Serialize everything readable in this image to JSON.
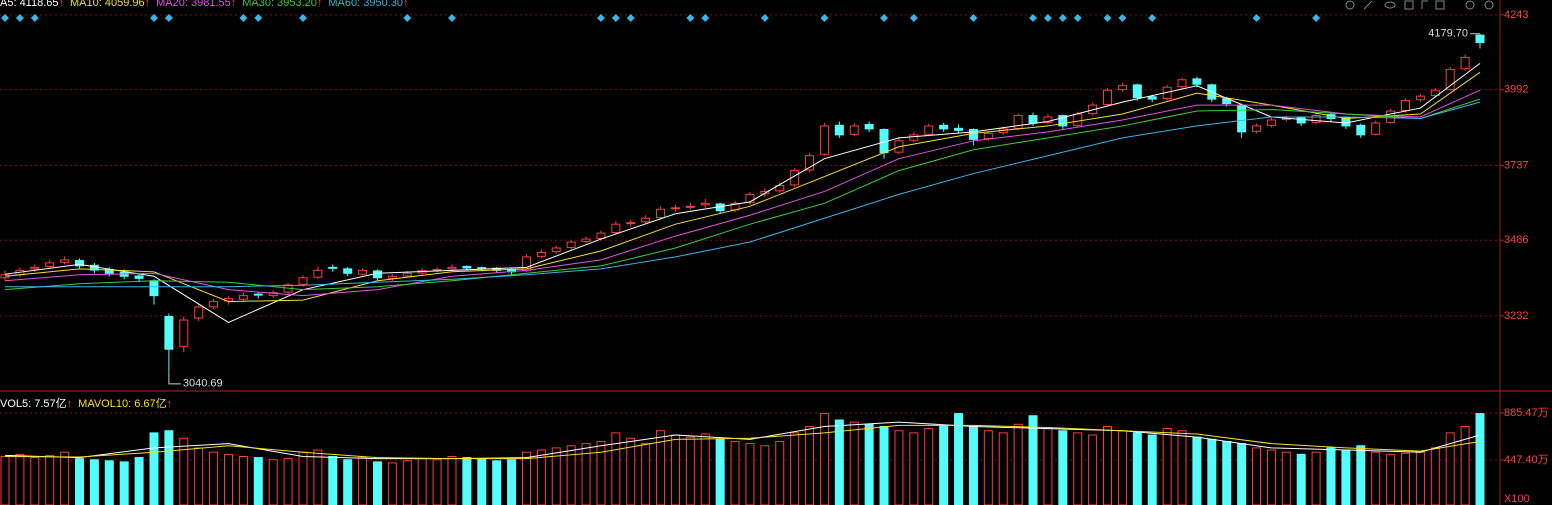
{
  "chart_data": [
    {
      "type": "candlestick",
      "up_color": "#ff3c3c",
      "down_color": "#54fcfc",
      "ylim": [
        2983,
        4293
      ],
      "yticks": [
        3232,
        3486,
        3737,
        3992,
        4243
      ],
      "grid": true,
      "candles": [
        [
          3360,
          3385,
          3350,
          3370
        ],
        [
          3370,
          3395,
          3362,
          3385
        ],
        [
          3390,
          3405,
          3380,
          3395
        ],
        [
          3398,
          3420,
          3390,
          3410
        ],
        [
          3412,
          3432,
          3405,
          3420
        ],
        [
          3418,
          3425,
          3392,
          3400
        ],
        [
          3402,
          3410,
          3375,
          3386
        ],
        [
          3388,
          3395,
          3365,
          3375
        ],
        [
          3378,
          3388,
          3355,
          3365
        ],
        [
          3366,
          3372,
          3345,
          3358
        ],
        [
          3350,
          3355,
          3270,
          3300
        ],
        [
          3230,
          3240,
          3040.69,
          3120
        ],
        [
          3130,
          3230,
          3110,
          3218
        ],
        [
          3225,
          3270,
          3215,
          3262
        ],
        [
          3262,
          3290,
          3255,
          3280
        ],
        [
          3282,
          3298,
          3270,
          3290
        ],
        [
          3288,
          3310,
          3280,
          3300
        ],
        [
          3305,
          3312,
          3290,
          3302
        ],
        [
          3300,
          3318,
          3292,
          3310
        ],
        [
          3312,
          3342,
          3305,
          3336
        ],
        [
          3338,
          3368,
          3330,
          3360
        ],
        [
          3362,
          3398,
          3355,
          3385
        ],
        [
          3395,
          3405,
          3380,
          3393
        ],
        [
          3390,
          3396,
          3365,
          3375
        ],
        [
          3372,
          3392,
          3368,
          3385
        ],
        [
          3383,
          3388,
          3352,
          3360
        ],
        [
          3358,
          3372,
          3350,
          3365
        ],
        [
          3366,
          3382,
          3360,
          3375
        ],
        [
          3376,
          3392,
          3370,
          3384
        ],
        [
          3385,
          3396,
          3378,
          3388
        ],
        [
          3390,
          3405,
          3384,
          3395
        ],
        [
          3398,
          3402,
          3385,
          3393
        ],
        [
          3394,
          3398,
          3382,
          3390
        ],
        [
          3392,
          3396,
          3378,
          3385
        ],
        [
          3388,
          3392,
          3368,
          3380
        ],
        [
          3385,
          3440,
          3380,
          3430
        ],
        [
          3432,
          3455,
          3425,
          3445
        ],
        [
          3448,
          3468,
          3440,
          3460
        ],
        [
          3462,
          3488,
          3455,
          3480
        ],
        [
          3482,
          3498,
          3475,
          3490
        ],
        [
          3492,
          3518,
          3485,
          3510
        ],
        [
          3512,
          3550,
          3505,
          3540
        ],
        [
          3545,
          3555,
          3532,
          3545
        ],
        [
          3548,
          3570,
          3540,
          3560
        ],
        [
          3562,
          3600,
          3555,
          3590
        ],
        [
          3592,
          3605,
          3582,
          3595
        ],
        [
          3598,
          3612,
          3588,
          3600
        ],
        [
          3605,
          3625,
          3595,
          3610
        ],
        [
          3608,
          3612,
          3575,
          3585
        ],
        [
          3588,
          3618,
          3580,
          3610
        ],
        [
          3612,
          3648,
          3605,
          3640
        ],
        [
          3642,
          3660,
          3632,
          3650
        ],
        [
          3652,
          3680,
          3645,
          3670
        ],
        [
          3672,
          3728,
          3665,
          3720
        ],
        [
          3722,
          3780,
          3715,
          3770
        ],
        [
          3775,
          3880,
          3770,
          3870
        ],
        [
          3872,
          3885,
          3830,
          3840
        ],
        [
          3842,
          3880,
          3835,
          3870
        ],
        [
          3875,
          3885,
          3850,
          3860
        ],
        [
          3858,
          3862,
          3760,
          3780
        ],
        [
          3782,
          3830,
          3775,
          3820
        ],
        [
          3822,
          3850,
          3815,
          3840
        ],
        [
          3842,
          3878,
          3835,
          3870
        ],
        [
          3872,
          3880,
          3850,
          3860
        ],
        [
          3862,
          3875,
          3845,
          3855
        ],
        [
          3858,
          3862,
          3805,
          3825
        ],
        [
          3828,
          3852,
          3820,
          3845
        ],
        [
          3848,
          3868,
          3840,
          3860
        ],
        [
          3862,
          3912,
          3855,
          3905
        ],
        [
          3905,
          3915,
          3870,
          3880
        ],
        [
          3882,
          3910,
          3875,
          3900
        ],
        [
          3905,
          3908,
          3860,
          3870
        ],
        [
          3872,
          3918,
          3865,
          3910
        ],
        [
          3912,
          3948,
          3905,
          3940
        ],
        [
          3942,
          3998,
          3935,
          3990
        ],
        [
          3992,
          4015,
          3985,
          4005
        ],
        [
          4008,
          4012,
          3955,
          3965
        ],
        [
          3968,
          3975,
          3950,
          3960
        ],
        [
          3962,
          4008,
          3955,
          4000
        ],
        [
          4002,
          4032,
          3995,
          4025
        ],
        [
          4028,
          4035,
          4000,
          4010
        ],
        [
          4008,
          4012,
          3950,
          3960
        ],
        [
          3962,
          3968,
          3935,
          3945
        ],
        [
          3940,
          3945,
          3830,
          3850
        ],
        [
          3852,
          3878,
          3845,
          3870
        ],
        [
          3872,
          3898,
          3865,
          3890
        ],
        [
          3892,
          3905,
          3885,
          3895
        ],
        [
          3898,
          3902,
          3870,
          3880
        ],
        [
          3882,
          3912,
          3875,
          3905
        ],
        [
          3908,
          3912,
          3885,
          3895
        ],
        [
          3898,
          3902,
          3860,
          3870
        ],
        [
          3872,
          3878,
          3830,
          3840
        ],
        [
          3842,
          3888,
          3838,
          3880
        ],
        [
          3882,
          3928,
          3878,
          3920
        ],
        [
          3922,
          3962,
          3915,
          3955
        ],
        [
          3958,
          3978,
          3950,
          3970
        ],
        [
          3972,
          3998,
          3965,
          3990
        ],
        [
          3992,
          4068,
          3988,
          4060
        ],
        [
          4062,
          4110,
          4055,
          4100
        ],
        [
          4175,
          4179.7,
          4130,
          4150
        ]
      ],
      "series_x": [
        0,
        5,
        10,
        15,
        20,
        25,
        30,
        35,
        40,
        45,
        50,
        55,
        60,
        65,
        70,
        75,
        80,
        85,
        90,
        95,
        99
      ],
      "series": [
        {
          "name": "A5: 4118.65",
          "arrow": "↑",
          "color": "#ffffff",
          "values": [
            3372,
            3405,
            3365,
            3210,
            3320,
            3375,
            3385,
            3395,
            3490,
            3575,
            3615,
            3760,
            3830,
            3850,
            3885,
            3950,
            4005,
            3900,
            3880,
            3930,
            4080
          ]
        },
        {
          "name": "MA10: 4059.96",
          "arrow": "↑",
          "color": "#f5e028",
          "values": [
            3365,
            3390,
            3380,
            3280,
            3285,
            3350,
            3380,
            3390,
            3450,
            3540,
            3600,
            3700,
            3800,
            3845,
            3870,
            3910,
            3980,
            3940,
            3895,
            3910,
            4050
          ]
        },
        {
          "name": "MA20: 3981.55",
          "arrow": "↑",
          "color": "#e055e0",
          "values": [
            3350,
            3370,
            3375,
            3320,
            3300,
            3320,
            3365,
            3385,
            3420,
            3500,
            3570,
            3650,
            3760,
            3820,
            3850,
            3890,
            3940,
            3940,
            3910,
            3900,
            3990
          ]
        },
        {
          "name": "MA30: 3953.20",
          "arrow": "↑",
          "color": "#3ccc3c",
          "values": [
            3320,
            3340,
            3350,
            3345,
            3320,
            3330,
            3350,
            3375,
            3400,
            3460,
            3540,
            3610,
            3720,
            3790,
            3830,
            3870,
            3920,
            3925,
            3910,
            3895,
            3960
          ]
        },
        {
          "name": "MA60: 3950.30",
          "arrow": "↑",
          "color": "#3cb4e6",
          "values": [
            3330,
            3330,
            3330,
            3330,
            3335,
            3345,
            3355,
            3370,
            3390,
            3430,
            3480,
            3560,
            3640,
            3710,
            3770,
            3830,
            3870,
            3900,
            3900,
            3895,
            3950
          ]
        }
      ],
      "annotations": [
        {
          "index": 99,
          "value": 4179.7,
          "label": "4179.70"
        },
        {
          "index": 11,
          "value": 3040.69,
          "label": "3040.69"
        }
      ],
      "signals": [
        0,
        1,
        2,
        10,
        11,
        16,
        17,
        20,
        27,
        30,
        40,
        41,
        42,
        46,
        47,
        51,
        55,
        59,
        61,
        65,
        69,
        70,
        71,
        72,
        74,
        75,
        77,
        84,
        88
      ]
    },
    {
      "type": "bar",
      "ylim": [
        28,
        1081
      ],
      "yticks": [
        {
          "value": 885.47,
          "label": "885.47万"
        },
        {
          "value": 447.4,
          "label": "447.40万"
        }
      ],
      "grid": true,
      "unit_label": "X100",
      "values": [
        480,
        500,
        470,
        490,
        520,
        460,
        450,
        440,
        430,
        470,
        700,
        720,
        650,
        560,
        520,
        500,
        480,
        470,
        450,
        460,
        520,
        540,
        480,
        450,
        470,
        430,
        420,
        440,
        460,
        450,
        480,
        470,
        460,
        440,
        450,
        520,
        540,
        560,
        580,
        600,
        620,
        700,
        650,
        600,
        720,
        680,
        660,
        690,
        640,
        620,
        600,
        580,
        620,
        700,
        760,
        880,
        820,
        800,
        780,
        760,
        720,
        700,
        740,
        770,
        880,
        760,
        720,
        700,
        780,
        860,
        740,
        720,
        700,
        680,
        760,
        720,
        700,
        680,
        740,
        720,
        660,
        640,
        620,
        600,
        560,
        540,
        520,
        500,
        520,
        560,
        540,
        580,
        520,
        500,
        510,
        520,
        560,
        700,
        760,
        880
      ],
      "series_x": [
        0,
        5,
        10,
        15,
        20,
        25,
        30,
        35,
        40,
        45,
        50,
        55,
        60,
        65,
        70,
        75,
        80,
        85,
        90,
        95,
        99
      ],
      "series": [
        {
          "name": "VOL5: 7.57亿",
          "arrow": "↑",
          "color": "#ffffff",
          "values": [
            490,
            470,
            560,
            600,
            480,
            460,
            460,
            470,
            580,
            680,
            640,
            760,
            800,
            760,
            740,
            720,
            660,
            560,
            540,
            520,
            680
          ]
        },
        {
          "name": "MAVOL10: 6.67亿",
          "arrow": "↑",
          "color": "#f5e028",
          "values": [
            480,
            475,
            520,
            580,
            520,
            470,
            460,
            460,
            520,
            640,
            650,
            700,
            770,
            770,
            750,
            720,
            690,
            600,
            560,
            530,
            620
          ]
        }
      ]
    }
  ]
}
